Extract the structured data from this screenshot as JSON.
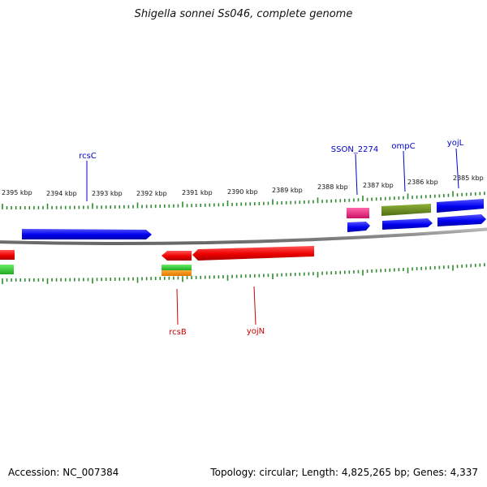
{
  "title": "Shigella sonnei Ss046, complete genome",
  "footer": {
    "accession": "Accession: NC_007384",
    "summary": "Topology: circular; Length: 4,825,265 bp; Genes: 4,337"
  },
  "scale_labels": [
    "2395 kbp",
    "2394 kbp",
    "2393 kbp",
    "2392 kbp",
    "2391 kbp",
    "2390 kbp",
    "2389 kbp",
    "2388 kbp",
    "2387 kbp",
    "2386 kbp",
    "2385 kbp"
  ],
  "colors": {
    "forward": "#0000ee",
    "reverse": "#ee0000",
    "pink": "#e6267a",
    "olive": "#6b8e23",
    "green": "#33cc33",
    "orange": "#ff8c00",
    "ticks": "#2e8b2e",
    "backbone": "#808080"
  },
  "gene_labels": {
    "rcsC": "rcsC",
    "sson2274": "SSON_2274",
    "ompC": "ompC",
    "yojL": "yojL",
    "rcsB": "rcsB",
    "yojN": "yojN"
  }
}
